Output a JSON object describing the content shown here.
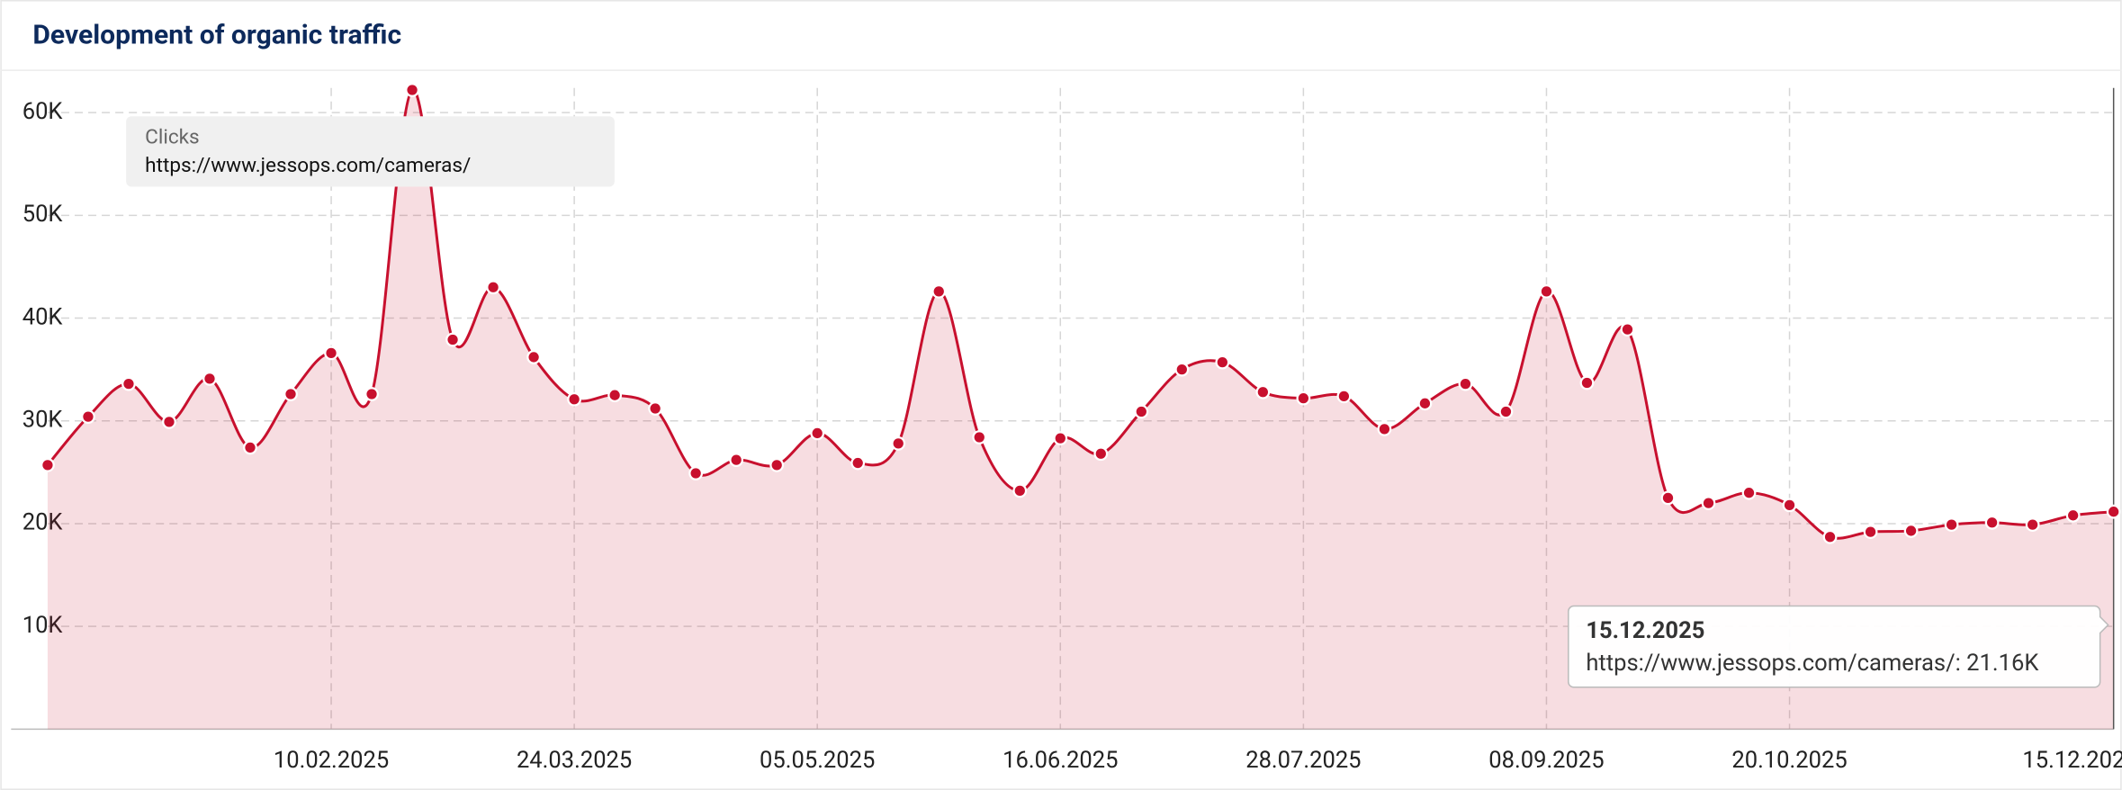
{
  "chart_data": {
    "type": "area",
    "title": "Development of organic traffic",
    "legend_title": "Clicks",
    "categories": [
      null,
      null,
      null,
      null,
      null,
      null,
      null,
      "10.02.2025",
      null,
      null,
      null,
      null,
      null,
      "24.03.2025",
      null,
      null,
      null,
      null,
      null,
      "05.05.2025",
      null,
      null,
      null,
      null,
      null,
      "16.06.2025",
      null,
      null,
      null,
      null,
      null,
      "28.07.2025",
      null,
      null,
      null,
      null,
      null,
      "08.09.2025",
      null,
      null,
      null,
      null,
      null,
      "20.10.2025",
      null,
      null,
      null,
      null,
      null,
      null,
      null,
      "15.12.2025"
    ],
    "series": [
      {
        "name": "https://www.jessops.com/cameras/",
        "color": "#c8102e",
        "values": [
          25700,
          30400,
          33600,
          29900,
          34100,
          27400,
          32600,
          36600,
          32600,
          62200,
          37900,
          43000,
          36200,
          32100,
          32500,
          31200,
          24900,
          26200,
          25700,
          28800,
          25900,
          27800,
          42600,
          28400,
          23200,
          28300,
          26800,
          30900,
          35000,
          35700,
          32800,
          32200,
          32400,
          29200,
          31700,
          33600,
          30900,
          42600,
          33700,
          38900,
          22500,
          22000,
          23000,
          21800,
          18700,
          19200,
          19300,
          19900,
          20100,
          19900,
          20800,
          21160
        ]
      }
    ],
    "ylim": [
      0,
      62400
    ],
    "yticks": [
      {
        "value": 10000,
        "label": "10K"
      },
      {
        "value": 20000,
        "label": "20K"
      },
      {
        "value": 30000,
        "label": "30K"
      },
      {
        "value": 40000,
        "label": "40K"
      },
      {
        "value": 50000,
        "label": "50K"
      },
      {
        "value": 60000,
        "label": "60K"
      }
    ],
    "grid": true,
    "tooltip": {
      "text": "https://www.jessops.com/cameras/: 21.16K"
    }
  }
}
